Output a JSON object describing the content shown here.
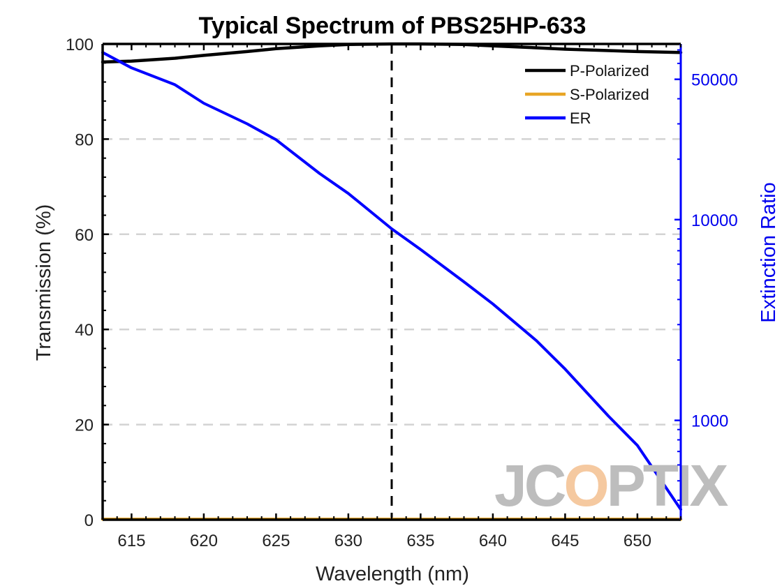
{
  "chart_data": {
    "type": "line",
    "title": "Typical Spectrum of PBS25HP-633",
    "xlabel": "Wavelength (nm)",
    "ylabel": "Transmission (%)",
    "y2label": "Extinction Ratio",
    "xlim": [
      613,
      653
    ],
    "ylim": [
      0,
      100
    ],
    "y2lim": [
      320,
      75000
    ],
    "y2scale": "log",
    "xticks": [
      615,
      620,
      625,
      630,
      635,
      640,
      645,
      650
    ],
    "xtick_labels": [
      "615",
      "620",
      "625",
      "630",
      "635",
      "640",
      "645",
      "650"
    ],
    "yticks": [
      0,
      20,
      40,
      60,
      80,
      100
    ],
    "ytick_labels": [
      "0",
      "20",
      "40",
      "60",
      "80",
      "100"
    ],
    "y2ticks": [
      1000,
      10000,
      50000
    ],
    "y2tick_labels": [
      "1000",
      "10000",
      "50000"
    ],
    "grid": "horizontal-dashed",
    "legend_position": "top-right",
    "reference_line_x": 633,
    "series": [
      {
        "name": "P-Polarized",
        "axis": "left",
        "color": "#000000",
        "x": [
          613,
          615,
          618,
          620,
          623,
          625,
          628,
          630,
          633,
          635,
          638,
          640,
          643,
          645,
          648,
          650,
          653
        ],
        "y": [
          96.2,
          96.4,
          97.0,
          97.6,
          98.4,
          99.0,
          99.6,
          99.9,
          100.0,
          100.0,
          99.9,
          99.6,
          99.2,
          98.9,
          98.6,
          98.4,
          98.2
        ]
      },
      {
        "name": "S-Polarized",
        "axis": "left",
        "color": "#e8a525",
        "x": [
          613,
          623,
          633,
          643,
          653
        ],
        "y": [
          0.1,
          0.1,
          0.1,
          0.1,
          0.1
        ]
      },
      {
        "name": "ER",
        "axis": "right",
        "color": "#0000ff",
        "x": [
          613,
          615,
          618,
          620,
          623,
          625,
          628,
          630,
          633,
          635,
          638,
          640,
          643,
          645,
          648,
          650,
          653
        ],
        "y": [
          68000,
          57000,
          47000,
          38000,
          30000,
          25000,
          17000,
          13500,
          9000,
          7100,
          4900,
          3800,
          2500,
          1800,
          1050,
          750,
          360
        ]
      }
    ]
  },
  "watermark": {
    "text_start": "JC",
    "text_highlight": "O",
    "text_end": "PTIX",
    "highlight_color": "#f5c9a0",
    "color": "#bdbdbd"
  }
}
